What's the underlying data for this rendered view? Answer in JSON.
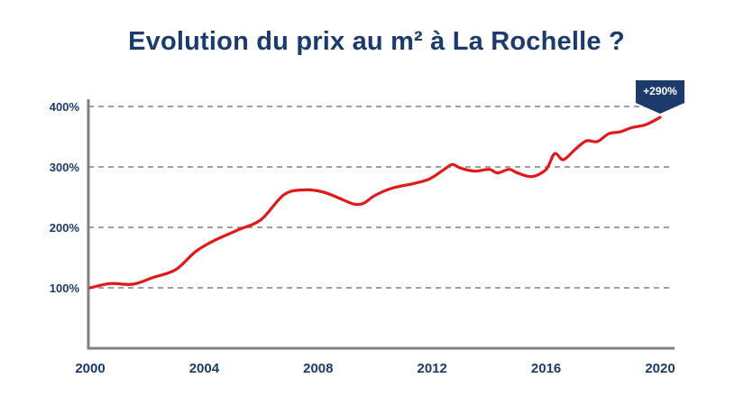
{
  "title": "Evolution du prix au m² à La Rochelle ?",
  "badge": "+290%",
  "colors": {
    "title": "#1c3a6b",
    "line": "#e0191b",
    "axis": "#808080",
    "grid": "#808080",
    "badge_bg": "#1c3a6b"
  },
  "chart_data": {
    "type": "line",
    "title": "Evolution du prix au m² à La Rochelle ?",
    "xlabel": "",
    "ylabel": "",
    "x_ticks": [
      2000,
      2004,
      2008,
      2012,
      2016,
      2020
    ],
    "y_ticks": [
      100,
      200,
      300,
      400
    ],
    "y_tick_labels": [
      "100%",
      "200%",
      "300%",
      "400%"
    ],
    "xlim": [
      2000,
      2020
    ],
    "ylim": [
      0,
      400
    ],
    "grid": "horizontal dashed",
    "annotation": {
      "text": "+290%",
      "x": 2020,
      "y": 390
    },
    "series": [
      {
        "x": [
          2000,
          2000.7,
          2001.5,
          2002.2,
          2003,
          2003.7,
          2004.3,
          2005.2,
          2006,
          2006.8,
          2007.5,
          2008.2,
          2009,
          2009.3,
          2009.6,
          2010,
          2010.6,
          2011.3,
          2011.9,
          2012.4,
          2012.7,
          2013,
          2013.5,
          2014,
          2014.3,
          2014.7,
          2015,
          2015.5,
          2016,
          2016.3,
          2016.6,
          2017,
          2017.4,
          2017.8,
          2018.2,
          2018.6,
          2019,
          2019.5,
          2020
        ],
        "values": [
          100,
          107,
          106,
          117,
          130,
          160,
          177,
          196,
          213,
          254,
          262,
          258,
          243,
          238,
          240,
          253,
          265,
          272,
          280,
          295,
          304,
          298,
          293,
          296,
          290,
          296,
          290,
          284,
          296,
          322,
          312,
          328,
          343,
          342,
          355,
          358,
          365,
          370,
          382
        ]
      }
    ]
  }
}
